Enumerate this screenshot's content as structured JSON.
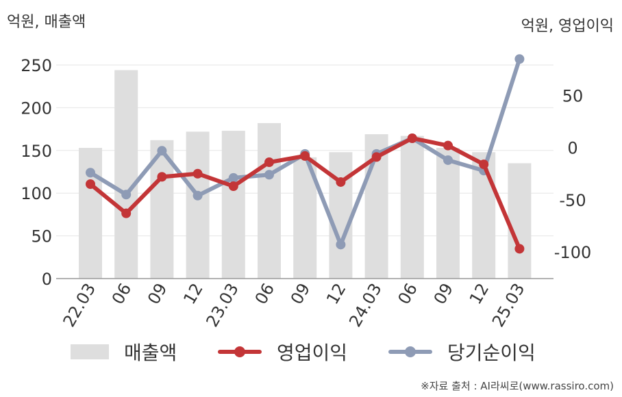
{
  "axis_units": {
    "left": "억원, 매출액",
    "right": "억원, 영업이익"
  },
  "source": "※자료 출처 : AI라씨로(www.rassiro.com)",
  "colors": {
    "sales": "#dedede",
    "operating_profit": "#c33537",
    "net_income": "#8e9bb5"
  },
  "chart_data": {
    "type": "bar",
    "categories": [
      "22.03",
      "06",
      "09",
      "12",
      "23.03",
      "06",
      "09",
      "12",
      "24.03",
      "06",
      "09",
      "12",
      "25.03"
    ],
    "y_left": {
      "ticks": [
        0,
        50,
        100,
        150,
        200,
        250
      ],
      "ylim": [
        0,
        262
      ]
    },
    "y_right": {
      "ticks": [
        -100,
        -50,
        0,
        50
      ],
      "ylim": [
        -125.6,
        89.1
      ]
    },
    "series": [
      {
        "name": "매출액",
        "type": "bar",
        "axis": "left",
        "values": [
          153,
          244,
          162,
          172,
          173,
          182,
          142,
          148,
          169,
          167,
          153,
          148,
          135
        ]
      },
      {
        "name": "영업이익",
        "type": "line",
        "axis": "right",
        "values": [
          -35,
          -63,
          -28,
          -25,
          -37,
          -14,
          -8,
          -33,
          -9,
          9,
          2,
          -16,
          -97
        ]
      },
      {
        "name": "당기순이익",
        "type": "line",
        "axis": "right",
        "values": [
          -24,
          -45,
          -3,
          -46,
          -29,
          -26,
          -6,
          -93,
          -6,
          9,
          -12,
          -22,
          85
        ]
      }
    ],
    "legend": [
      "매출액",
      "영업이익",
      "당기순이익"
    ],
    "legend_position": "bottom",
    "grid": true
  }
}
